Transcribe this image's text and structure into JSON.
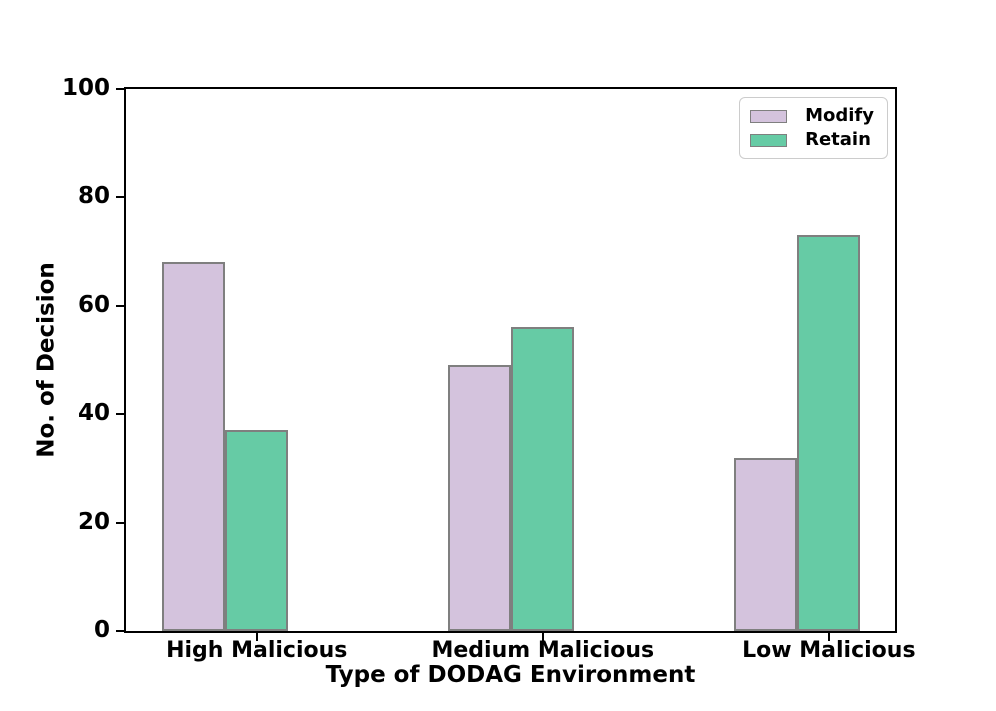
{
  "figure": {
    "background": "#ffffff",
    "axis_color": "#000000",
    "bar_edge_color": "#7f7f7f",
    "legend_border_color": "#cccccc"
  },
  "chart_data": {
    "type": "bar",
    "categories": [
      "High Malicious",
      "Medium Malicious",
      "Low Malicious"
    ],
    "series": [
      {
        "name": "Modify",
        "values": [
          68,
          49,
          32
        ],
        "fill": "#d4c3dd"
      },
      {
        "name": "Retain",
        "values": [
          37,
          56,
          73
        ],
        "fill": "#66cba5"
      }
    ],
    "title": "",
    "xlabel": "Type of DODAG Environment",
    "ylabel": "No. of Decision",
    "ylim": [
      0,
      100
    ],
    "yticks": [
      0,
      20,
      40,
      60,
      80,
      100
    ],
    "grid": false,
    "legend_position": "upper right"
  }
}
